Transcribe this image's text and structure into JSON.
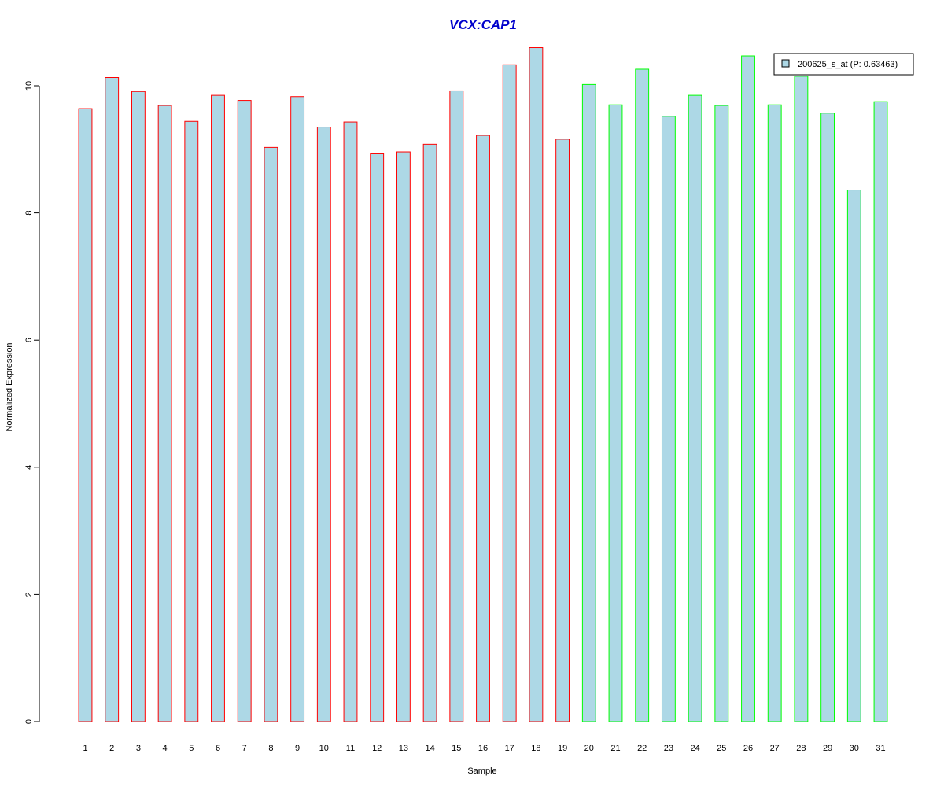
{
  "chart_data": {
    "type": "bar",
    "title": "VCX:CAP1",
    "title_color": "#0000CC",
    "xlabel": "Sample",
    "ylabel": "Normalized Expression",
    "ylim": [
      0,
      10.6
    ],
    "yticks": [
      0,
      2,
      4,
      6,
      8,
      10
    ],
    "grid": false,
    "legend_position": "top-right",
    "bar_fill": "#ADD8E6",
    "group_colors": {
      "group1": "#FF0000",
      "group2": "#00FF00"
    },
    "categories": [
      "1",
      "2",
      "3",
      "4",
      "5",
      "6",
      "7",
      "8",
      "9",
      "10",
      "11",
      "12",
      "13",
      "14",
      "15",
      "16",
      "17",
      "18",
      "19",
      "20",
      "21",
      "22",
      "23",
      "24",
      "25",
      "26",
      "27",
      "28",
      "29",
      "30",
      "31"
    ],
    "groups": [
      "group1",
      "group1",
      "group1",
      "group1",
      "group1",
      "group1",
      "group1",
      "group1",
      "group1",
      "group1",
      "group1",
      "group1",
      "group1",
      "group1",
      "group1",
      "group1",
      "group1",
      "group1",
      "group1",
      "group2",
      "group2",
      "group2",
      "group2",
      "group2",
      "group2",
      "group2",
      "group2",
      "group2",
      "group2",
      "group2",
      "group2"
    ],
    "series": [
      {
        "name": "200625_s_at (P: 0.63463)",
        "values": [
          9.64,
          10.13,
          9.91,
          9.69,
          9.44,
          9.85,
          9.77,
          9.03,
          9.83,
          9.35,
          9.43,
          8.93,
          8.96,
          9.08,
          9.92,
          9.22,
          10.33,
          10.6,
          9.16,
          10.02,
          9.7,
          10.26,
          9.52,
          9.85,
          9.69,
          10.47,
          9.7,
          10.15,
          9.57,
          8.36,
          9.75
        ]
      }
    ]
  }
}
